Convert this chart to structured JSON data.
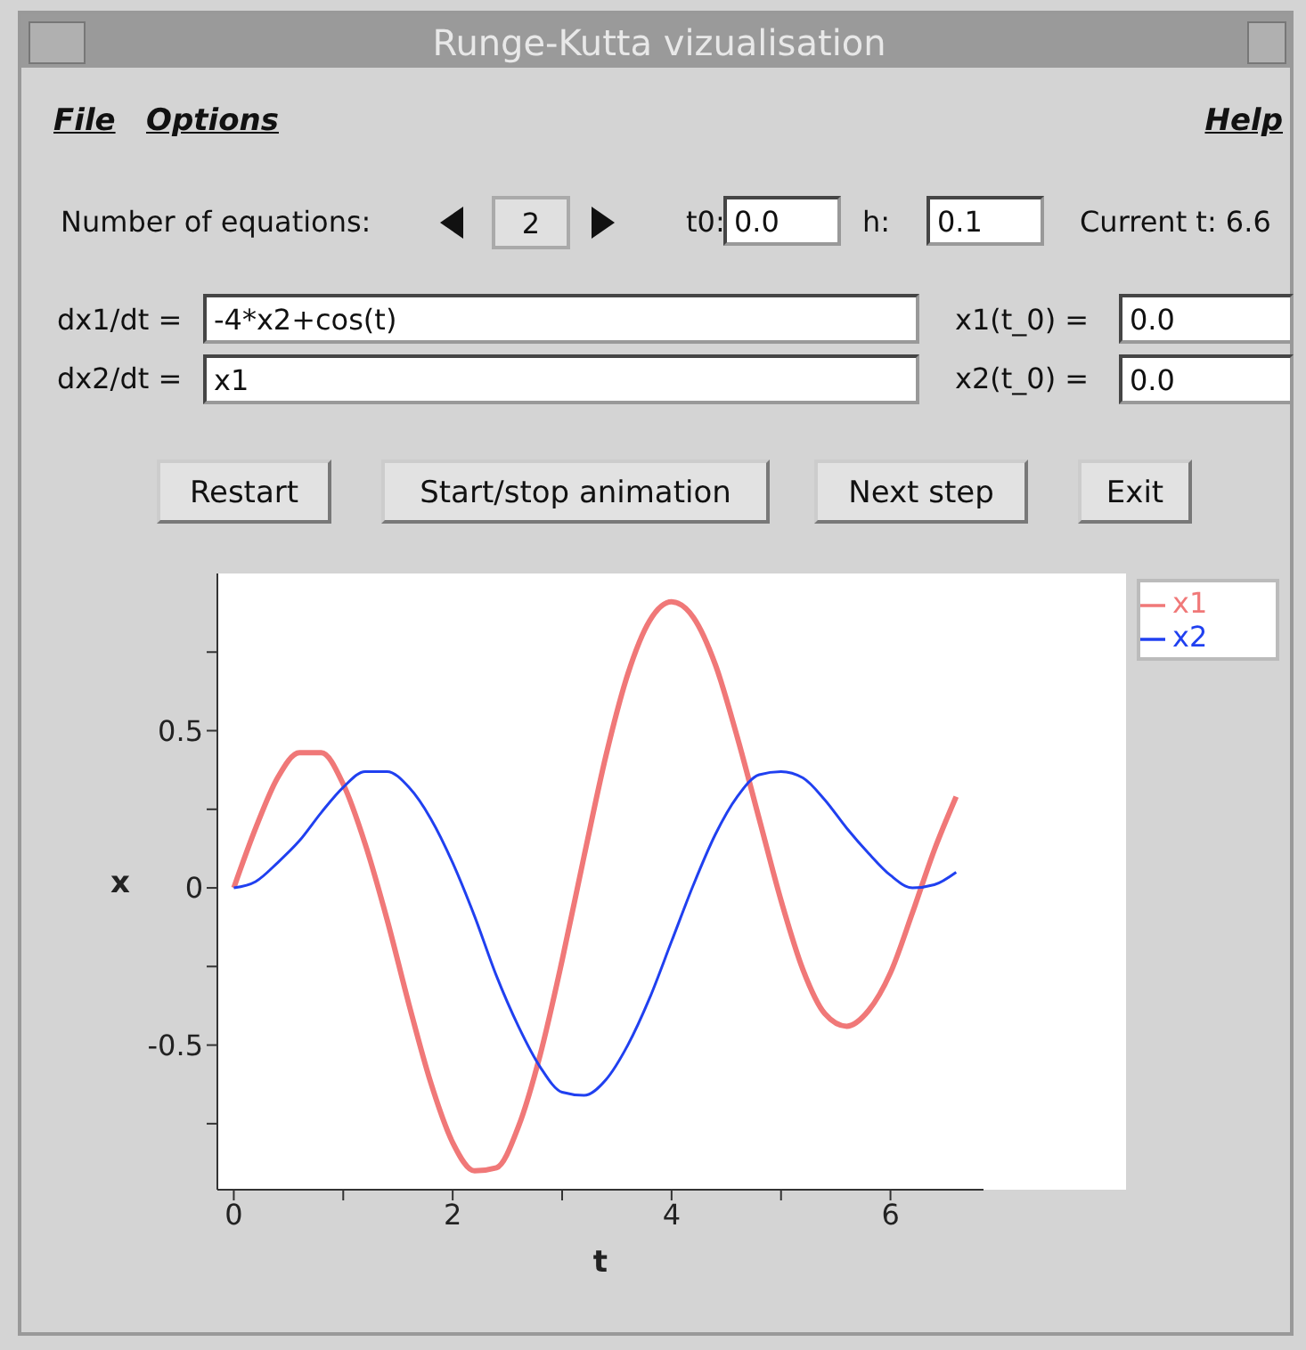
{
  "chart_data": {
    "type": "line",
    "title": "Runge-Kutta vizualisation",
    "xlabel": "t",
    "ylabel": "x",
    "x": [
      0,
      0.2,
      0.4,
      0.6,
      0.8,
      1.0,
      1.2,
      1.4,
      1.6,
      1.8,
      2.0,
      2.2,
      2.4,
      2.6,
      2.8,
      3.0,
      3.2,
      3.4,
      3.6,
      3.8,
      4.0,
      4.2,
      4.4,
      4.6,
      4.8,
      5.0,
      5.2,
      5.4,
      5.6,
      5.8,
      6.0,
      6.2,
      6.4,
      6.6
    ],
    "series": [
      {
        "name": "x1",
        "color": "#f07878",
        "values": [
          0,
          0.19,
          0.35,
          0.43,
          0.43,
          0.33,
          0.14,
          -0.1,
          -0.37,
          -0.62,
          -0.81,
          -0.9,
          -0.89,
          -0.76,
          -0.53,
          -0.23,
          0.1,
          0.42,
          0.68,
          0.85,
          0.91,
          0.86,
          0.71,
          0.48,
          0.22,
          -0.04,
          -0.26,
          -0.4,
          -0.44,
          -0.39,
          -0.27,
          -0.08,
          0.12,
          0.29
        ]
      },
      {
        "name": "x2",
        "color": "#2040f0",
        "values": [
          0,
          0.02,
          0.08,
          0.15,
          0.24,
          0.32,
          0.37,
          0.37,
          0.32,
          0.22,
          0.08,
          -0.09,
          -0.28,
          -0.44,
          -0.57,
          -0.65,
          -0.66,
          -0.61,
          -0.5,
          -0.35,
          -0.17,
          0.01,
          0.17,
          0.29,
          0.36,
          0.37,
          0.35,
          0.28,
          0.19,
          0.11,
          0.04,
          0,
          0.01,
          0.05
        ]
      }
    ],
    "xlim": [
      -0.15,
      6.85
    ],
    "xticks": [
      0,
      {
        "value": 1,
        "label": null
      },
      2,
      {
        "value": 3,
        "label": null
      },
      4,
      {
        "value": 5,
        "label": null
      },
      6
    ],
    "ylim": [
      -0.96,
      1.0
    ],
    "yticks": [
      {
        "value": -0.75,
        "label": null
      },
      -0.5,
      {
        "value": -0.25,
        "label": null
      },
      0,
      {
        "value": 0.25,
        "label": null
      },
      0.5,
      {
        "value": 0.75,
        "label": null
      }
    ],
    "legend": "top right",
    "annotations": [
      "File",
      "Options",
      "Help",
      "Number of equations:",
      "2",
      "t0:",
      "0.0",
      "h:",
      "0.1",
      "Current t: 6.6",
      "dx1/dt =",
      "-4*x2+cos(t)",
      "dx2/dt =",
      "x1",
      "x1(t_0) =",
      "0.0",
      "x2(t_0) =",
      "0.0",
      "Restart",
      "Start/stop animation",
      "Next step",
      "Exit"
    ]
  }
}
